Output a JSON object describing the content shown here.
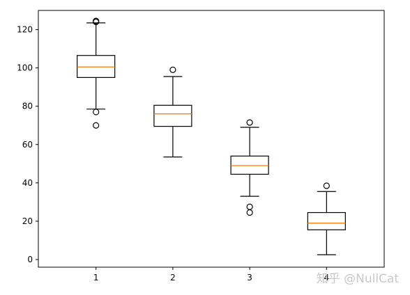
{
  "chart_data": {
    "type": "box",
    "categories": [
      "1",
      "2",
      "3",
      "4"
    ],
    "ylim": [
      -4,
      130
    ],
    "yticks": [
      0,
      20,
      40,
      60,
      80,
      100,
      120
    ],
    "grid": false,
    "boxes": [
      {
        "category": "1",
        "whisker_low": 78.5,
        "q1": 95,
        "median": 100.5,
        "q3": 106.5,
        "whisker_high": 123.5,
        "outliers": [
          124,
          124.5,
          77,
          70
        ]
      },
      {
        "category": "2",
        "whisker_low": 53.5,
        "q1": 69.5,
        "median": 76,
        "q3": 80.5,
        "whisker_high": 95.5,
        "outliers": [
          99
        ]
      },
      {
        "category": "3",
        "whisker_low": 33,
        "q1": 44.5,
        "median": 49,
        "q3": 54,
        "whisker_high": 69,
        "outliers": [
          71.5,
          27.5,
          24.5
        ]
      },
      {
        "category": "4",
        "whisker_low": 2.5,
        "q1": 15.5,
        "median": 19,
        "q3": 24.5,
        "whisker_high": 35.5,
        "outliers": [
          38.5
        ]
      }
    ],
    "colors": {
      "box": "#000000",
      "median": "#ff7f0e",
      "outlier": "#000000"
    }
  },
  "watermark": "知乎 @NullCat"
}
